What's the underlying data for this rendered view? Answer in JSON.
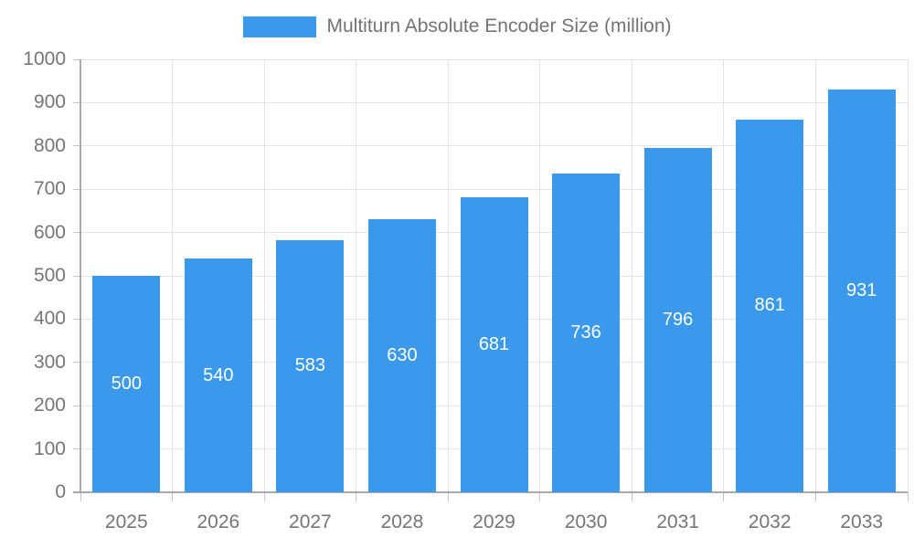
{
  "legend": {
    "label": "Multiturn Absolute Encoder Size (million)"
  },
  "colors": {
    "bar": "#3b99ec",
    "bar_label": "#ffffff",
    "grid": "#e4e4e4",
    "axis": "#a9a9a9",
    "tick": "#c6c6c6",
    "tick_text": "#757575",
    "legend_text": "#737373"
  },
  "chart_data": {
    "type": "bar",
    "title": "Multiturn Absolute Encoder Size (million)",
    "series_name": "Multiturn Absolute Encoder Size (million)",
    "categories": [
      "2025",
      "2026",
      "2027",
      "2028",
      "2029",
      "2030",
      "2031",
      "2032",
      "2033"
    ],
    "values": [
      500,
      540,
      583,
      630,
      681,
      736,
      796,
      861,
      931
    ],
    "data_labels_visible": true,
    "xlabel": "",
    "ylabel": "",
    "ylim": [
      0,
      1000
    ],
    "y_ticks": [
      0,
      100,
      200,
      300,
      400,
      500,
      600,
      700,
      800,
      900,
      1000
    ],
    "grid": true,
    "legend_position": "top"
  }
}
